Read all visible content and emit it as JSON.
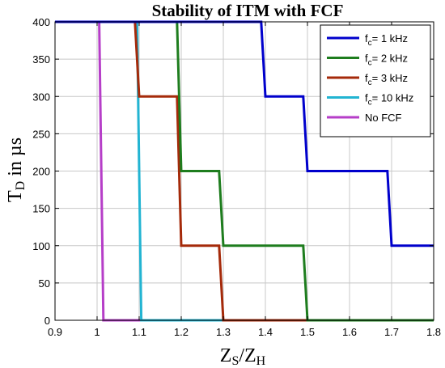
{
  "chart_data": {
    "type": "line",
    "title": "Stability of ITM with FCF",
    "xlabel": {
      "main": "Z",
      "sub1": "S",
      "sep": "/Z",
      "sub2": "H"
    },
    "ylabel": {
      "main": "T",
      "sub": "D",
      "rest": " in µs"
    },
    "xlim": [
      0.9,
      1.8
    ],
    "ylim": [
      0,
      400
    ],
    "xticks": [
      0.9,
      1.0,
      1.1,
      1.2,
      1.3,
      1.4,
      1.5,
      1.6,
      1.7,
      1.8
    ],
    "xtick_labels": [
      "0.9",
      "1",
      "1.1",
      "1.2",
      "1.3",
      "1.4",
      "1.5",
      "1.6",
      "1.7",
      "1.8"
    ],
    "yticks": [
      0,
      50,
      100,
      150,
      200,
      250,
      300,
      350,
      400
    ],
    "ytick_labels": [
      "0",
      "50",
      "100",
      "150",
      "200",
      "250",
      "300",
      "350",
      "400"
    ],
    "grid": true,
    "legend_position": "top-right",
    "series": [
      {
        "legend": {
          "pre": "f",
          "sub": "c",
          "post": "= 1 kHz"
        },
        "color": "#0000cc",
        "x": [
          0.9,
          1.39,
          1.4,
          1.49,
          1.5,
          1.69,
          1.7,
          1.8
        ],
        "y": [
          400,
          400,
          300,
          300,
          200,
          200,
          100,
          100
        ]
      },
      {
        "legend": {
          "pre": "f",
          "sub": "c",
          "post": "= 2 kHz"
        },
        "color": "#1e7d1e",
        "x": [
          0.9,
          1.19,
          1.2,
          1.29,
          1.3,
          1.49,
          1.5,
          1.8
        ],
        "y": [
          400,
          400,
          200,
          200,
          100,
          100,
          0,
          0
        ]
      },
      {
        "legend": {
          "pre": "f",
          "sub": "c",
          "post": "= 3 kHz"
        },
        "color": "#a52a0a",
        "x": [
          0.9,
          1.09,
          1.1,
          1.19,
          1.2,
          1.29,
          1.3,
          1.8
        ],
        "y": [
          400,
          400,
          300,
          300,
          100,
          100,
          0,
          0
        ]
      },
      {
        "legend": {
          "pre": "f",
          "sub": "c",
          "post": "= 10 kHz"
        },
        "color": "#22b4d2",
        "x": [
          0.9,
          1.095,
          1.105,
          1.8
        ],
        "y": [
          400,
          400,
          0,
          0
        ]
      },
      {
        "legend": {
          "pre": "No FCF",
          "sub": "",
          "post": ""
        },
        "color": "#b63ec8",
        "x": [
          0.9,
          1.005,
          1.015,
          1.8
        ],
        "y": [
          400,
          400,
          0,
          0
        ]
      }
    ]
  }
}
